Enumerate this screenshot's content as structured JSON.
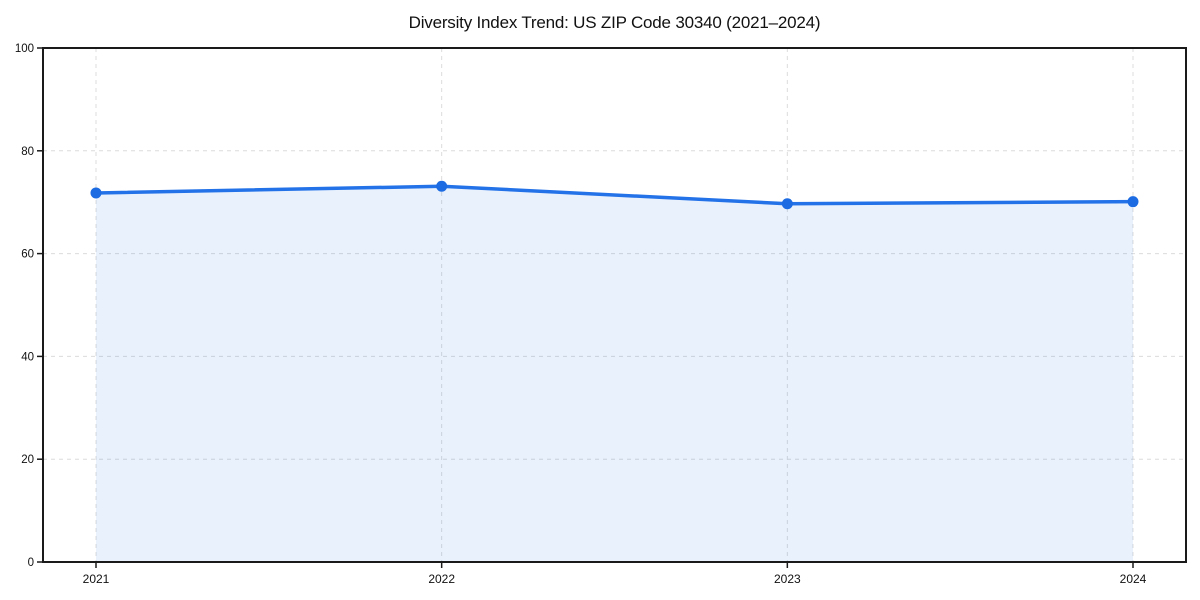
{
  "chart_data": {
    "type": "area",
    "categories": [
      "2021",
      "2022",
      "2023",
      "2024"
    ],
    "values": [
      71.8,
      73.1,
      69.7,
      70.1
    ],
    "series": [
      {
        "name": "Diversity Index",
        "values": [
          71.8,
          73.1,
          69.7,
          70.1
        ]
      }
    ],
    "title": "Diversity Index Trend: US ZIP Code 30340 (2021–2024)",
    "xlabel": "",
    "ylabel": "",
    "ylim": [
      0,
      100
    ],
    "yticks": [
      0,
      20,
      40,
      60,
      80,
      100
    ],
    "xticklabels": [
      "2021",
      "2022",
      "2023",
      "2024"
    ],
    "grid": true,
    "grid_style": "dashed",
    "legend": "none",
    "marker": "circle",
    "colors": {
      "line": "#2372e8",
      "marker": "#1c6be2",
      "fill": "rgba(35,114,232,0.10)",
      "grid": "#dcdcdc",
      "spine": "#1a1a1a",
      "tick": "#1a1a1a",
      "text": "#111111",
      "background": "#ffffff"
    }
  }
}
